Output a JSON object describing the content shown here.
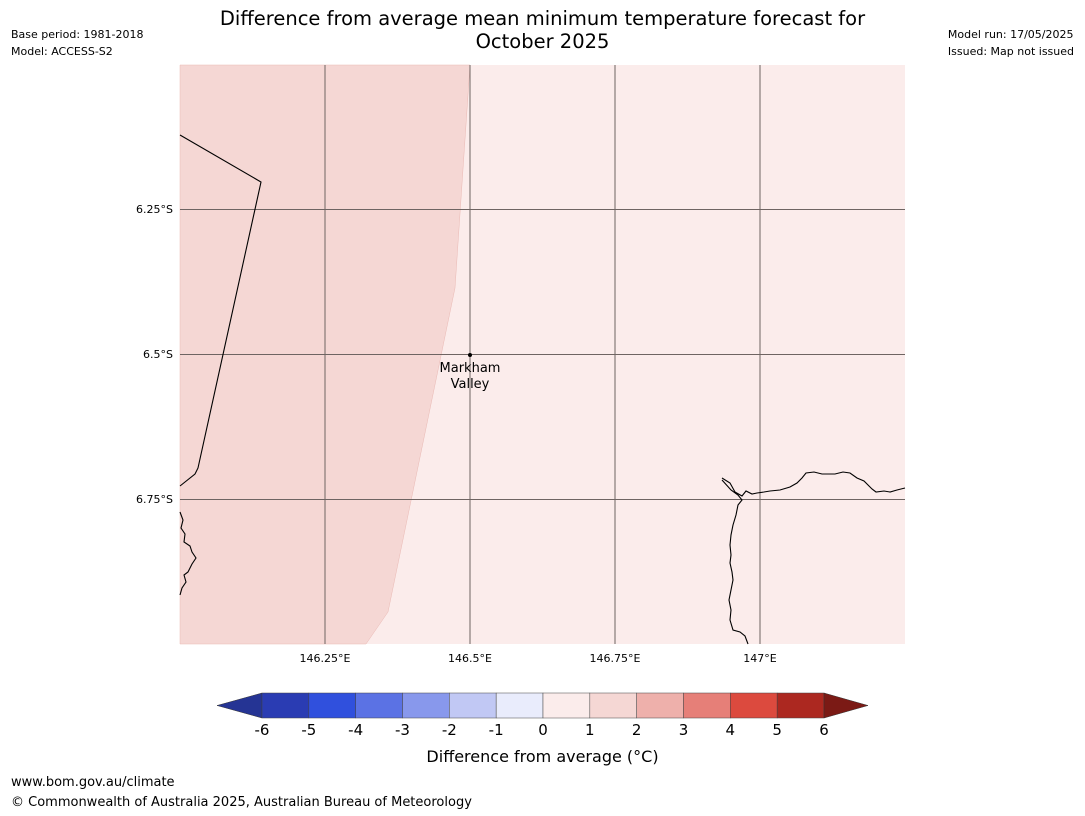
{
  "header": {
    "title_line1": "Difference from average mean minimum temperature forecast for",
    "title_line2": "October 2025",
    "base_period": "Base period: 1981-2018",
    "model": "Model: ACCESS-S2",
    "model_run": "Model run: 17/05/2025",
    "issued": "Issued: Map not issued"
  },
  "map": {
    "lon_ticks": [
      "146.25°E",
      "146.5°E",
      "146.75°E",
      "147°E"
    ],
    "lat_ticks": [
      "6.25°S",
      "6.5°S",
      "6.75°S"
    ],
    "place": {
      "name_line1": "Markham",
      "name_line2": "Valley"
    },
    "anomaly_regions": [
      {
        "category": "1 to 2",
        "color": "#f5d7d4",
        "side": "west"
      },
      {
        "category": "0 to 1",
        "color": "#fbeceb",
        "side": "east"
      }
    ]
  },
  "colorbar": {
    "title": "Difference from average (°C)",
    "labels": [
      "-6",
      "-5",
      "-4",
      "-3",
      "-2",
      "-1",
      "0",
      "1",
      "2",
      "3",
      "4",
      "5",
      "6"
    ],
    "colors": [
      "#253494",
      "#2a3cb3",
      "#3050dd",
      "#5b72e4",
      "#8898ec",
      "#c1c8f4",
      "#e9ecfc",
      "#fbeceb",
      "#f5d7d4",
      "#eeb0ab",
      "#e67f78",
      "#dc4a3e",
      "#ac2820",
      "#7b1a15"
    ]
  },
  "footer": {
    "url": "www.bom.gov.au/climate",
    "copyright": "© Commonwealth of Australia 2025, Australian Bureau of Meteorology"
  }
}
